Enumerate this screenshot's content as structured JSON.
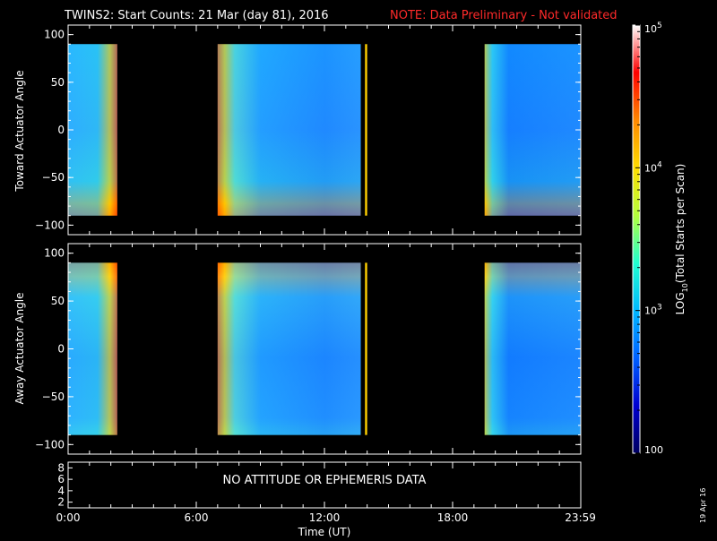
{
  "title": {
    "main": "TWINS2: Start Counts: 21 Mar (day  81), 2016",
    "note": "NOTE: Data Preliminary - Not validated"
  },
  "colors": {
    "background": "#000000",
    "axes": "#ffffff",
    "note": "#ff2a2a"
  },
  "chart_data": [
    {
      "type": "heatmap",
      "panel": "top",
      "ylabel": "Toward Actuator Angle",
      "ylim": [
        -110,
        110
      ],
      "yticks": [
        "100",
        "50",
        "0",
        "−50",
        "−100"
      ],
      "ytick_values": [
        100,
        50,
        0,
        -50,
        -100
      ],
      "xlim_hours": [
        0,
        24
      ],
      "data_y_range": [
        -90,
        90
      ],
      "data_segments_hours": [
        [
          0.0,
          2.3
        ],
        [
          7.0,
          13.7
        ],
        [
          13.9,
          14.0
        ],
        [
          19.5,
          24.0
        ]
      ],
      "grid": false
    },
    {
      "type": "heatmap",
      "panel": "middle",
      "ylabel": "Away Actuator Angle",
      "ylim": [
        -110,
        110
      ],
      "yticks": [
        "100",
        "50",
        "0",
        "−50",
        "−100"
      ],
      "ytick_values": [
        100,
        50,
        0,
        -50,
        -100
      ],
      "xlim_hours": [
        0,
        24
      ],
      "data_y_range": [
        -90,
        90
      ],
      "data_segments_hours": [
        [
          0.0,
          2.3
        ],
        [
          7.0,
          13.7
        ],
        [
          13.9,
          14.0
        ],
        [
          19.5,
          24.0
        ]
      ],
      "grid": false
    },
    {
      "type": "table",
      "panel": "bottom",
      "message": "NO ATTITUDE OR EPHEMERIS DATA",
      "yticks": [
        "8",
        "6",
        "4",
        "2"
      ],
      "ytick_values": [
        8,
        6,
        4,
        2
      ],
      "ylim": [
        1,
        9
      ]
    }
  ],
  "xaxis": {
    "label": "Time (UT)",
    "ticks": [
      "0:00",
      "6:00",
      "12:00",
      "18:00",
      "23:59"
    ],
    "tick_values": [
      0,
      6,
      12,
      18,
      23.983
    ]
  },
  "colorbar": {
    "label": "LOG10(Total Starts per Scan)",
    "label_prefix": "LOG",
    "label_sub": "10",
    "label_suffix": "(Total Starts per Scan)",
    "scale": "log",
    "range": [
      100,
      100000
    ],
    "tick_labels": [
      {
        "value": 100000,
        "base": "10",
        "exp": "5"
      },
      {
        "value": 10000,
        "base": "10",
        "exp": "4"
      },
      {
        "value": 1000,
        "base": "10",
        "exp": "3"
      },
      {
        "value": 100,
        "text": "100"
      }
    ],
    "gradient": [
      "#ffffff",
      "#ff0000",
      "#ff8800",
      "#ffdd00",
      "#b4ff3c",
      "#20ffd0",
      "#00b8ff",
      "#0060ff",
      "#0000d0",
      "#000060"
    ]
  },
  "stamp": "19 Apr 16"
}
